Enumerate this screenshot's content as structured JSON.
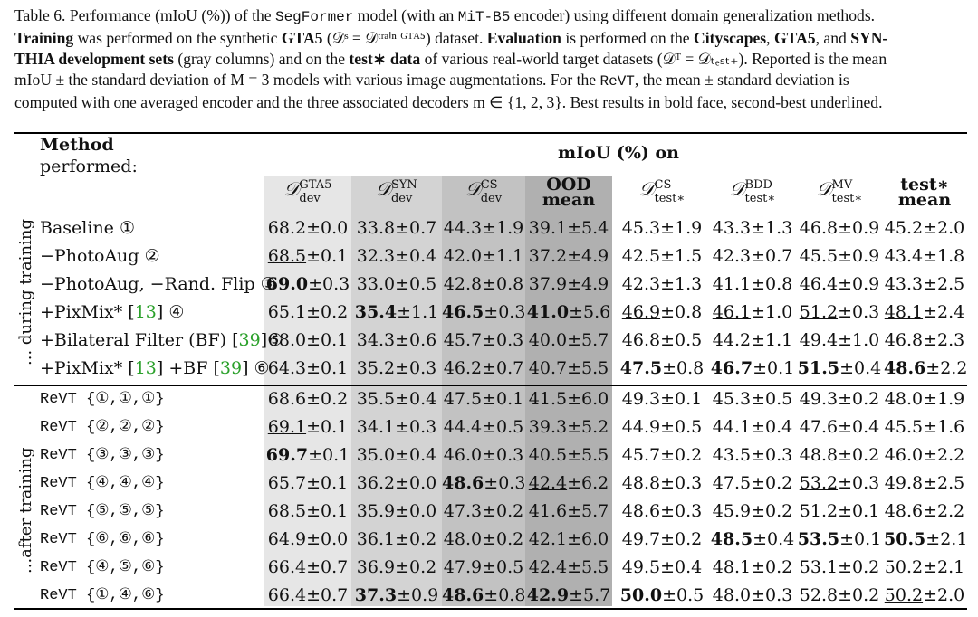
{
  "caption": {
    "line1_a": "Table 6. Performance (mIoU (%)) of the ",
    "line1_model": "SegFormer",
    "line1_b": " model (with an ",
    "line1_enc": "MiT-B5",
    "line1_c": " encoder) using different domain generalization methods.",
    "line2_a": "Training",
    "line2_b": " was performed on the synthetic ",
    "line2_c": "GTA5",
    "line2_d": " (𝒟ˢ = 𝒟ᵗʳᵃⁱⁿ ᴳᵀᴬ⁵) dataset. ",
    "line2_e": "Evaluation",
    "line2_f": " is performed on the ",
    "line2_g": "Cityscapes",
    "line2_h": ", ",
    "line2_i": "GTA5",
    "line2_j": ", and ",
    "line2_k": "SYN-",
    "line3_a": "THIA development sets",
    "line3_b": " (gray columns) and on the ",
    "line3_c": "test∗ data",
    "line3_d": " of various real-world target datasets (𝒟ᵀ = 𝒟ₜₑₛₜ₊). Reported is the mean",
    "line4": "mIoU ± the standard deviation of M = 3 models with various image augmentations.  For the ",
    "line4_revt": "ReVT",
    "line4_b": ", the mean ± standard deviation is",
    "line5": "computed with one averaged encoder and the three associated decoders m ∈ {1, 2, 3}. Best results in bold face, second-best underlined."
  },
  "header": {
    "method_bold": "Method",
    "method_sub": "performed:",
    "miou_label": "mIoU (%) on",
    "columns": [
      {
        "sym": "𝒟",
        "sup": "GTA5",
        "sub": "dev"
      },
      {
        "sym": "𝒟",
        "sup": "SYN",
        "sub": "dev"
      },
      {
        "sym": "𝒟",
        "sup": "CS",
        "sub": "dev"
      },
      {
        "top": "OOD",
        "bottom": "mean"
      },
      {
        "sym": "𝒟",
        "sup": "CS",
        "sub": "test∗"
      },
      {
        "sym": "𝒟",
        "sup": "BDD",
        "sub": "test∗"
      },
      {
        "sym": "𝒟",
        "sup": "MV",
        "sub": "test∗"
      },
      {
        "top": "test∗",
        "bottom": "mean"
      }
    ]
  },
  "side_labels": {
    "during": "... during training",
    "after": "...after training"
  },
  "rows_during": [
    {
      "method": "Baseline ①",
      "cells": [
        [
          "68.2",
          "±0.0",
          ""
        ],
        [
          "33.8",
          "±0.7",
          ""
        ],
        [
          "44.3",
          "±1.9",
          ""
        ],
        [
          "39.1",
          "±5.4",
          ""
        ],
        [
          "45.3",
          "±1.9",
          ""
        ],
        [
          "43.3",
          "±1.3",
          ""
        ],
        [
          "46.8",
          "±0.9",
          ""
        ],
        [
          "45.2",
          "±2.0",
          ""
        ]
      ]
    },
    {
      "method": "−PhotoAug ②",
      "cells": [
        [
          "68.5",
          "±0.1",
          "u"
        ],
        [
          "32.3",
          "±0.4",
          ""
        ],
        [
          "42.0",
          "±1.1",
          ""
        ],
        [
          "37.2",
          "±4.9",
          ""
        ],
        [
          "42.5",
          "±1.5",
          ""
        ],
        [
          "42.3",
          "±0.7",
          ""
        ],
        [
          "45.5",
          "±0.9",
          ""
        ],
        [
          "43.4",
          "±1.8",
          ""
        ]
      ]
    },
    {
      "method": "−PhotoAug, −Rand. Flip ③",
      "cells": [
        [
          "69.0",
          "±0.3",
          "b"
        ],
        [
          "33.0",
          "±0.5",
          ""
        ],
        [
          "42.8",
          "±0.8",
          ""
        ],
        [
          "37.9",
          "±4.9",
          ""
        ],
        [
          "42.3",
          "±1.3",
          ""
        ],
        [
          "41.1",
          "±0.8",
          ""
        ],
        [
          "46.4",
          "±0.9",
          ""
        ],
        [
          "43.3",
          "±2.5",
          ""
        ]
      ]
    },
    {
      "method_a": "+PixMix* [",
      "cite1": "13",
      "method_b": "] ④",
      "cells": [
        [
          "65.1",
          "±0.2",
          ""
        ],
        [
          "35.4",
          "±1.1",
          "b"
        ],
        [
          "46.5",
          "±0.3",
          "b"
        ],
        [
          "41.0",
          "±5.6",
          "b"
        ],
        [
          "46.9",
          "±0.8",
          "u"
        ],
        [
          "46.1",
          "±1.0",
          "u"
        ],
        [
          "51.2",
          "±0.3",
          "u"
        ],
        [
          "48.1",
          "±2.4",
          "u"
        ]
      ]
    },
    {
      "method_a": "+Bilateral Filter (BF) [",
      "cite1": "39",
      "method_b": "]⑤",
      "cells": [
        [
          "68.0",
          "±0.1",
          ""
        ],
        [
          "34.3",
          "±0.6",
          ""
        ],
        [
          "45.7",
          "±0.3",
          ""
        ],
        [
          "40.0",
          "±5.7",
          ""
        ],
        [
          "46.8",
          "±0.5",
          ""
        ],
        [
          "44.2",
          "±1.1",
          ""
        ],
        [
          "49.4",
          "±1.0",
          ""
        ],
        [
          "46.8",
          "±2.3",
          ""
        ]
      ]
    },
    {
      "method_a": "+PixMix* [",
      "cite1": "13",
      "method_b": "] +BF [",
      "cite2": "39",
      "method_c": "] ⑥",
      "cells": [
        [
          "64.3",
          "±0.1",
          ""
        ],
        [
          "35.2",
          "±0.3",
          "u"
        ],
        [
          "46.2",
          "±0.7",
          "u"
        ],
        [
          "40.7",
          "±5.5",
          "u"
        ],
        [
          "47.5",
          "±0.8",
          "b"
        ],
        [
          "46.7",
          "±0.1",
          "b"
        ],
        [
          "51.5",
          "±0.4",
          "b"
        ],
        [
          "48.6",
          "±2.2",
          "b"
        ]
      ]
    }
  ],
  "rows_after": [
    {
      "method": "ReVT {①,①,①}",
      "cells": [
        [
          "68.6",
          "±0.2",
          ""
        ],
        [
          "35.5",
          "±0.4",
          ""
        ],
        [
          "47.5",
          "±0.1",
          ""
        ],
        [
          "41.5",
          "±6.0",
          ""
        ],
        [
          "49.3",
          "±0.1",
          ""
        ],
        [
          "45.3",
          "±0.5",
          ""
        ],
        [
          "49.3",
          "±0.2",
          ""
        ],
        [
          "48.0",
          "±1.9",
          ""
        ]
      ]
    },
    {
      "method": "ReVT {②,②,②}",
      "cells": [
        [
          "69.1",
          "±0.1",
          "u"
        ],
        [
          "34.1",
          "±0.3",
          ""
        ],
        [
          "44.4",
          "±0.5",
          ""
        ],
        [
          "39.3",
          "±5.2",
          ""
        ],
        [
          "44.9",
          "±0.5",
          ""
        ],
        [
          "44.1",
          "±0.4",
          ""
        ],
        [
          "47.6",
          "±0.4",
          ""
        ],
        [
          "45.5",
          "±1.6",
          ""
        ]
      ]
    },
    {
      "method": "ReVT {③,③,③}",
      "cells": [
        [
          "69.7",
          "±0.1",
          "b"
        ],
        [
          "35.0",
          "±0.4",
          ""
        ],
        [
          "46.0",
          "±0.3",
          ""
        ],
        [
          "40.5",
          "±5.5",
          ""
        ],
        [
          "45.7",
          "±0.2",
          ""
        ],
        [
          "43.5",
          "±0.3",
          ""
        ],
        [
          "48.8",
          "±0.2",
          ""
        ],
        [
          "46.0",
          "±2.2",
          ""
        ]
      ]
    },
    {
      "method": "ReVT {④,④,④}",
      "cells": [
        [
          "65.7",
          "±0.1",
          ""
        ],
        [
          "36.2",
          "±0.0",
          ""
        ],
        [
          "48.6",
          "±0.3",
          "b"
        ],
        [
          "42.4",
          "±6.2",
          "u"
        ],
        [
          "48.8",
          "±0.3",
          ""
        ],
        [
          "47.5",
          "±0.2",
          ""
        ],
        [
          "53.2",
          "±0.3",
          "u"
        ],
        [
          "49.8",
          "±2.5",
          ""
        ]
      ]
    },
    {
      "method": "ReVT {⑤,⑤,⑤}",
      "cells": [
        [
          "68.5",
          "±0.1",
          ""
        ],
        [
          "35.9",
          "±0.0",
          ""
        ],
        [
          "47.3",
          "±0.2",
          ""
        ],
        [
          "41.6",
          "±5.7",
          ""
        ],
        [
          "48.6",
          "±0.3",
          ""
        ],
        [
          "45.9",
          "±0.2",
          ""
        ],
        [
          "51.2",
          "±0.1",
          ""
        ],
        [
          "48.6",
          "±2.2",
          ""
        ]
      ]
    },
    {
      "method": "ReVT {⑥,⑥,⑥}",
      "cells": [
        [
          "64.9",
          "±0.0",
          ""
        ],
        [
          "36.1",
          "±0.2",
          ""
        ],
        [
          "48.0",
          "±0.2",
          ""
        ],
        [
          "42.1",
          "±6.0",
          ""
        ],
        [
          "49.7",
          "±0.2",
          "u"
        ],
        [
          "48.5",
          "±0.4",
          "b"
        ],
        [
          "53.5",
          "±0.1",
          "b"
        ],
        [
          "50.5",
          "±2.1",
          "b"
        ]
      ]
    },
    {
      "method": "ReVT {④,⑤,⑥}",
      "cells": [
        [
          "66.4",
          "±0.7",
          ""
        ],
        [
          "36.9",
          "±0.2",
          "u"
        ],
        [
          "47.9",
          "±0.5",
          ""
        ],
        [
          "42.4",
          "±5.5",
          "u"
        ],
        [
          "49.5",
          "±0.4",
          ""
        ],
        [
          "48.1",
          "±0.2",
          "u"
        ],
        [
          "53.1",
          "±0.2",
          ""
        ],
        [
          "50.2",
          "±2.1",
          "u"
        ]
      ]
    },
    {
      "method": "ReVT {①,④,⑥}",
      "cells": [
        [
          "66.4",
          "±0.7",
          ""
        ],
        [
          "37.3",
          "±0.9",
          "b"
        ],
        [
          "48.6",
          "±0.8",
          "b"
        ],
        [
          "42.9",
          "±5.7",
          "b"
        ],
        [
          "50.0",
          "±0.5",
          "b"
        ],
        [
          "48.0",
          "±0.3",
          ""
        ],
        [
          "52.8",
          "±0.2",
          ""
        ],
        [
          "50.2",
          "±2.0",
          "u"
        ]
      ]
    }
  ],
  "colors": {
    "shade_light": "#e6e6e6",
    "shade_mid": "#cdcdcd",
    "shade_dark": "#b3b3b3",
    "cite": "#2aa02a"
  }
}
